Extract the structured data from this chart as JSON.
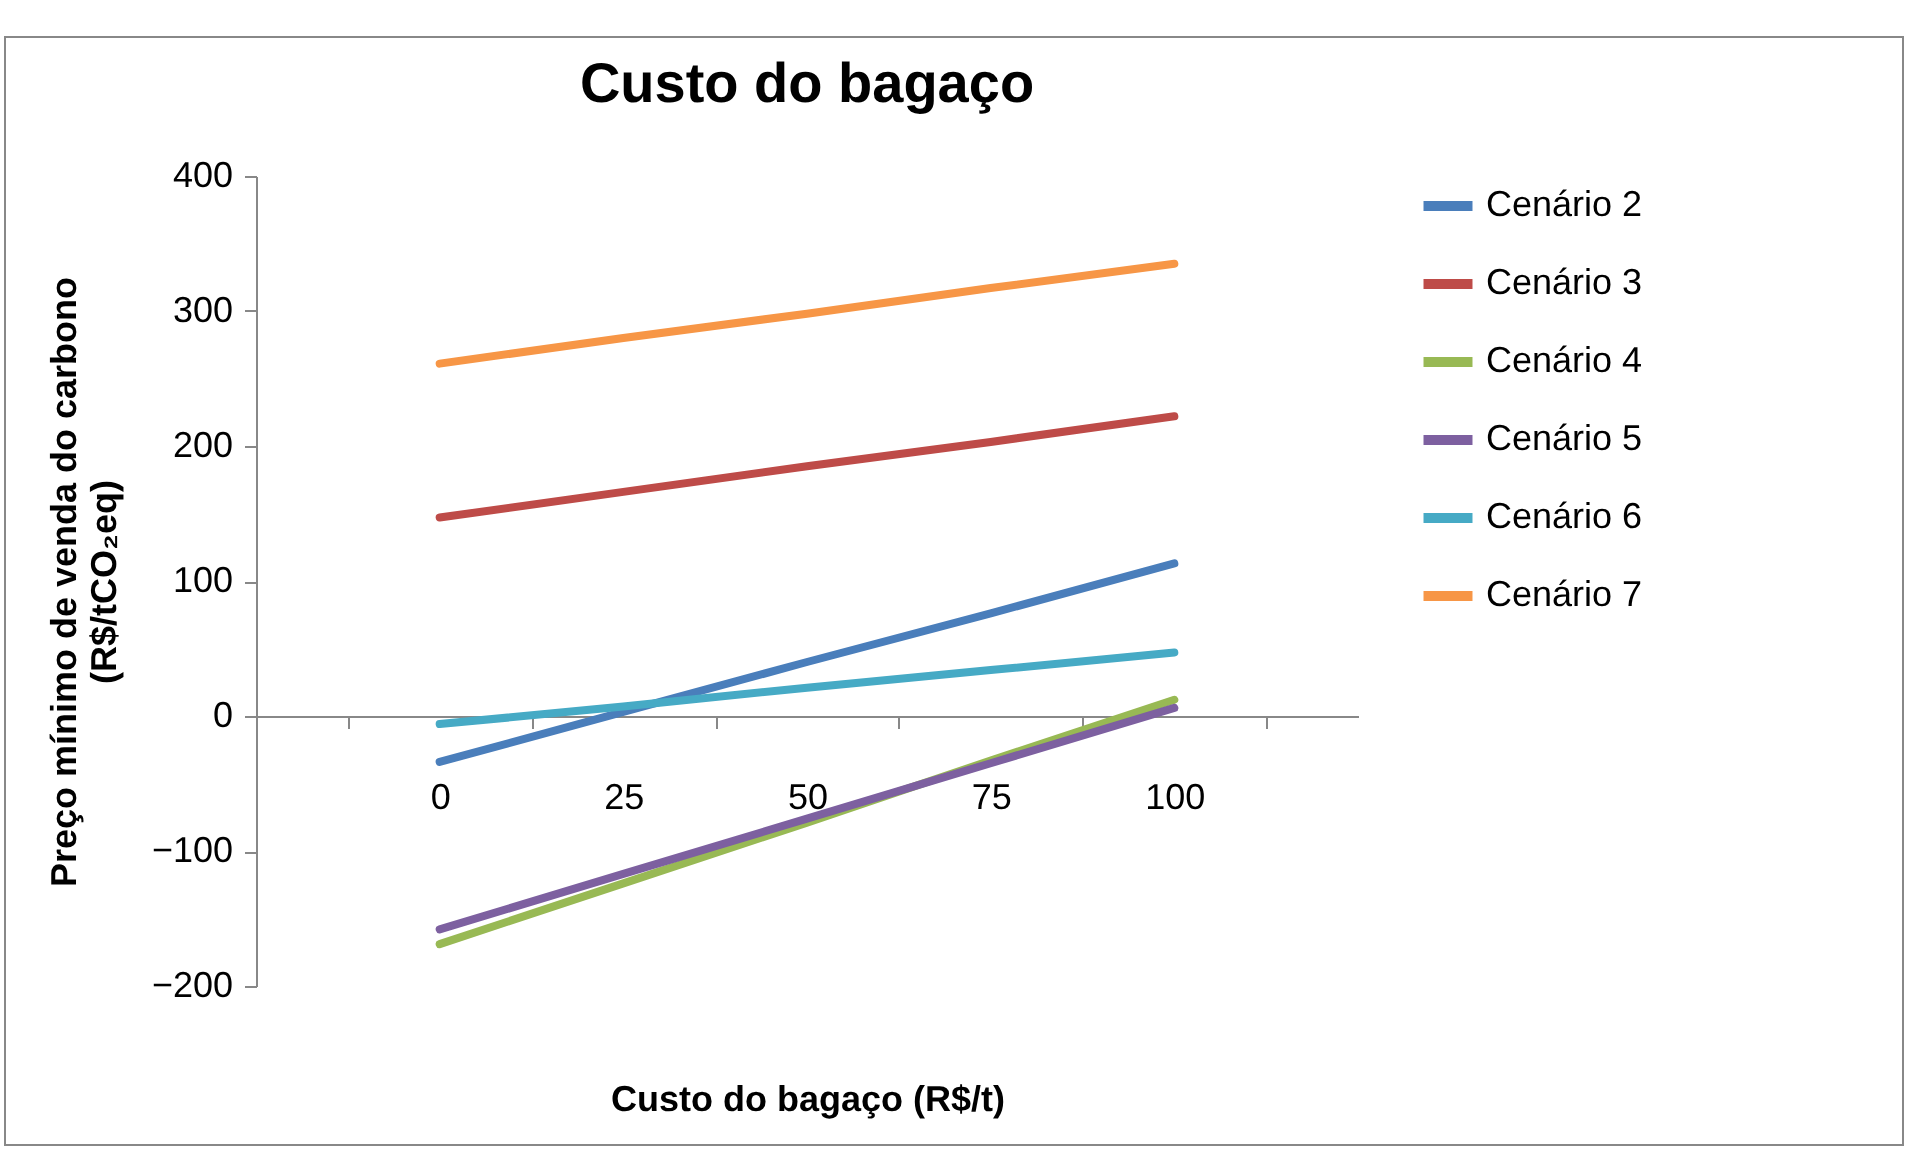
{
  "chart_data": {
    "type": "line",
    "title": "Custo do bagaço",
    "xlabel": "Custo do bagaço (R$/t)",
    "ylabel": "Preço mínimo de venda do carbono (R$/tCO₂eq)",
    "categories": [
      "0",
      "25",
      "50",
      "75",
      "100"
    ],
    "series": [
      {
        "name": "Cenário 2",
        "color": "#4a7ebb",
        "values": [
          -34,
          3,
          40,
          76,
          113
        ]
      },
      {
        "name": "Cenário 3",
        "color": "#be4b48",
        "values": [
          147,
          166,
          185,
          203,
          222
        ]
      },
      {
        "name": "Cenário 4",
        "color": "#98b954",
        "values": [
          -169,
          -124,
          -79,
          -33,
          12
        ]
      },
      {
        "name": "Cenário 5",
        "color": "#7d60a0",
        "values": [
          -158,
          -117,
          -76,
          -35,
          6
        ]
      },
      {
        "name": "Cenário 6",
        "color": "#46aac5",
        "values": [
          -6,
          7,
          21,
          34,
          47
        ]
      },
      {
        "name": "Cenário 7",
        "color": "#f79646",
        "values": [
          261,
          280,
          298,
          317,
          335
        ]
      }
    ],
    "ylim": [
      -200,
      400
    ],
    "yticks": [
      -200,
      -100,
      0,
      100,
      200,
      300,
      400
    ],
    "grid": false,
    "legend": "right",
    "marker": "none",
    "line_style": "solid"
  }
}
